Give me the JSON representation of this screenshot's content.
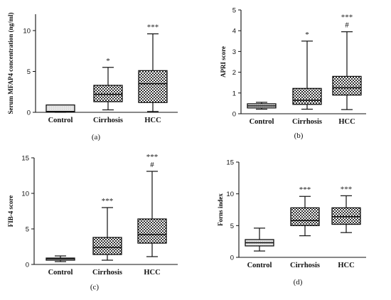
{
  "chart_data": [
    {
      "type": "box",
      "panel_label": "(a)",
      "ylabel": "Serum MFAP4 concentration (ng/ml)",
      "ylim": [
        0,
        12
      ],
      "yticks": [
        0,
        5,
        10
      ],
      "categories": [
        "Control",
        "Cirrhosis",
        "HCC"
      ],
      "boxes": [
        {
          "category": "Control",
          "min": 0.0,
          "q1": 0.1,
          "median": 0.1,
          "q3": 0.9,
          "max": 0.9,
          "pattern": "light"
        },
        {
          "category": "Cirrhosis",
          "min": 0.3,
          "q1": 1.3,
          "median": 2.2,
          "q3": 3.3,
          "max": 5.5,
          "pattern": "check"
        },
        {
          "category": "HCC",
          "min": 0.1,
          "q1": 1.2,
          "median": 3.5,
          "q3": 5.1,
          "max": 9.6,
          "pattern": "check"
        }
      ],
      "annotations": [
        {
          "category": "Cirrhosis",
          "text": "*"
        },
        {
          "category": "HCC",
          "text": "***"
        }
      ]
    },
    {
      "type": "box",
      "panel_label": "(b)",
      "ylabel": "APRI score",
      "ylim": [
        0,
        5
      ],
      "yticks": [
        0,
        1,
        2,
        3,
        4,
        5
      ],
      "categories": [
        "Control",
        "Cirrhosis",
        "HCC"
      ],
      "boxes": [
        {
          "category": "Control",
          "min": 0.22,
          "q1": 0.28,
          "median": 0.38,
          "q3": 0.48,
          "max": 0.55,
          "pattern": "light"
        },
        {
          "category": "Cirrhosis",
          "min": 0.22,
          "q1": 0.45,
          "median": 0.65,
          "q3": 1.22,
          "max": 3.5,
          "pattern": "check"
        },
        {
          "category": "HCC",
          "min": 0.2,
          "q1": 0.9,
          "median": 1.25,
          "q3": 1.8,
          "max": 3.95,
          "pattern": "check"
        }
      ],
      "annotations": [
        {
          "category": "Cirrhosis",
          "text": "*"
        },
        {
          "category": "HCC",
          "text": "***"
        },
        {
          "category": "HCC",
          "text": "#"
        }
      ]
    },
    {
      "type": "box",
      "panel_label": "(c)",
      "ylabel": "FIB-4 score",
      "ylim": [
        0,
        15
      ],
      "yticks": [
        0,
        5,
        10,
        15
      ],
      "categories": [
        "Control",
        "Cirrhosis",
        "HCC"
      ],
      "boxes": [
        {
          "category": "Control",
          "min": 0.4,
          "q1": 0.6,
          "median": 0.8,
          "q3": 0.9,
          "max": 1.2,
          "pattern": "light"
        },
        {
          "category": "Cirrhosis",
          "min": 0.6,
          "q1": 1.4,
          "median": 2.4,
          "q3": 3.8,
          "max": 8.0,
          "pattern": "check"
        },
        {
          "category": "HCC",
          "min": 1.1,
          "q1": 3.0,
          "median": 4.2,
          "q3": 6.4,
          "max": 13.1,
          "pattern": "check"
        }
      ],
      "annotations": [
        {
          "category": "Cirrhosis",
          "text": "***"
        },
        {
          "category": "HCC",
          "text": "***"
        },
        {
          "category": "HCC",
          "text": "#"
        }
      ]
    },
    {
      "type": "box",
      "panel_label": "(d)",
      "ylabel": "Forns index",
      "ylim": [
        0,
        15
      ],
      "yticks": [
        0,
        5,
        10,
        15
      ],
      "categories": [
        "Control",
        "Cirrhosis",
        "HCC"
      ],
      "boxes": [
        {
          "category": "Control",
          "min": 1.0,
          "q1": 1.8,
          "median": 2.3,
          "q3": 2.8,
          "max": 4.6,
          "pattern": "light"
        },
        {
          "category": "Cirrhosis",
          "min": 3.4,
          "q1": 5.0,
          "median": 5.8,
          "q3": 7.8,
          "max": 9.6,
          "pattern": "check"
        },
        {
          "category": "HCC",
          "min": 3.9,
          "q1": 5.2,
          "median": 6.4,
          "q3": 7.8,
          "max": 9.7,
          "pattern": "check"
        }
      ],
      "annotations": [
        {
          "category": "Cirrhosis",
          "text": "***"
        },
        {
          "category": "HCC",
          "text": "***"
        }
      ]
    }
  ]
}
